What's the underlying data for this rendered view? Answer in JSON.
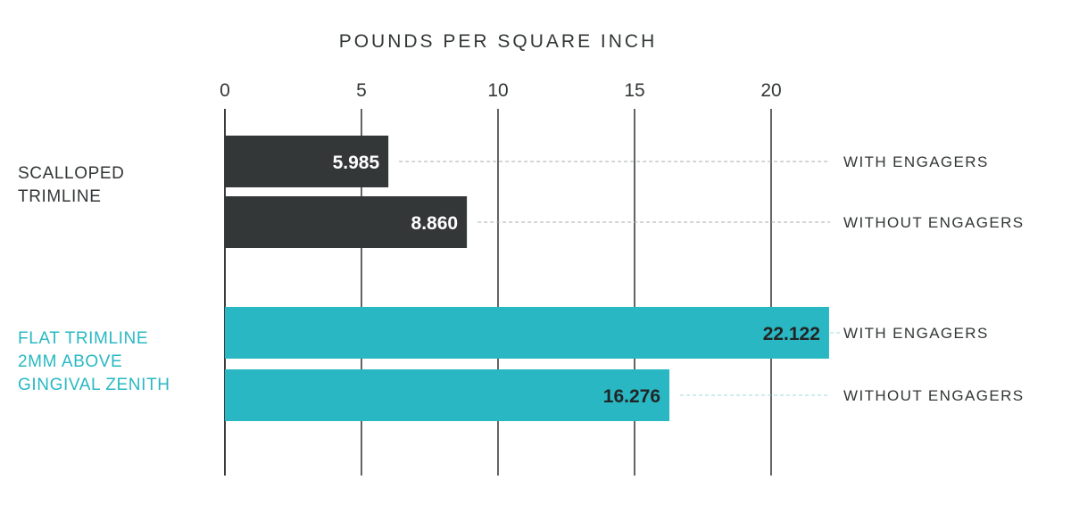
{
  "chart_data": {
    "type": "bar",
    "orientation": "horizontal",
    "title": "",
    "xlabel": "POUNDS PER SQUARE INCH",
    "xlim": [
      0,
      22.5
    ],
    "xticks": [
      0,
      5,
      10,
      15,
      20
    ],
    "grid": true,
    "groups": [
      {
        "label": "SCALLOPED TRIMLINE",
        "label_lines": [
          "SCALLOPED",
          "TRIMLINE"
        ],
        "color": "#333738",
        "value_label_color": "#ffffff",
        "bars": [
          {
            "series": "WITH ENGAGERS",
            "value": 5.985,
            "value_label": "5.985"
          },
          {
            "series": "WITHOUT ENGAGERS",
            "value": 8.86,
            "value_label": "8.860"
          }
        ]
      },
      {
        "label": "FLAT TRIMLINE 2MM ABOVE GINGIVAL ZENITH",
        "label_lines": [
          "FLAT TRIMLINE",
          "2MM ABOVE",
          "GINGIVAL ZENITH"
        ],
        "color": "#29b8c3",
        "value_label_color": "#222526",
        "bars": [
          {
            "series": "WITH ENGAGERS",
            "value": 22.122,
            "value_label": "22.122"
          },
          {
            "series": "WITHOUT ENGAGERS",
            "value": 16.276,
            "value_label": "16.276"
          }
        ]
      }
    ]
  }
}
